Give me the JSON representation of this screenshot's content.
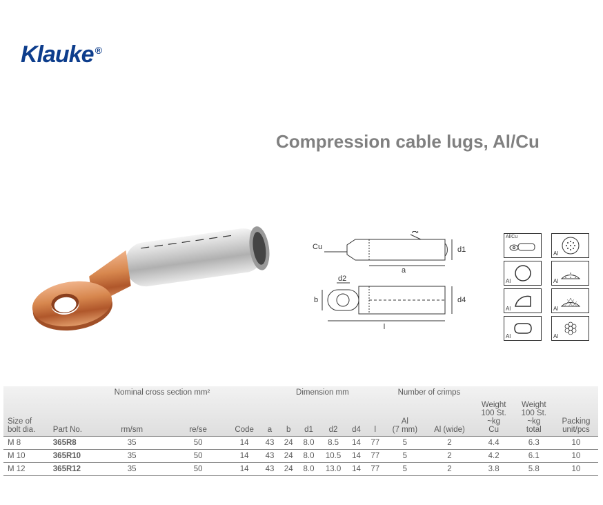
{
  "logo": {
    "text": "Klauke",
    "reg": "®",
    "color": "#0d3d8c"
  },
  "title": "Compression cable lugs, Al/Cu",
  "photo": {
    "barrel_color": "#c8c8c8",
    "copper_color": "#d7874e",
    "copper_dark": "#b0572b"
  },
  "diagram": {
    "labels": {
      "cu": "Cu",
      "al": "Al",
      "a": "a",
      "d1": "d1",
      "b": "b",
      "d2": "d2",
      "d4": "d4",
      "l": "l"
    }
  },
  "icons": [
    {
      "label_tl": "Al/Cu",
      "label_bl": "",
      "shape": "lug"
    },
    {
      "label_tl": "",
      "label_bl": "Al",
      "shape": "dots"
    },
    {
      "label_tl": "",
      "label_bl": "Al",
      "shape": "circle"
    },
    {
      "label_tl": "",
      "label_bl": "Al",
      "shape": "sector"
    },
    {
      "label_tl": "",
      "label_bl": "Al",
      "shape": "halfsector"
    },
    {
      "label_tl": "",
      "label_bl": "Al",
      "shape": "mesh"
    },
    {
      "label_tl": "",
      "label_bl": "Al",
      "shape": "hex"
    },
    {
      "label_tl": "",
      "label_bl": "Al",
      "shape": "bundle"
    }
  ],
  "table": {
    "group_headers": [
      {
        "text": "",
        "span": 2
      },
      {
        "text": "Nominal cross section mm²",
        "span": 2
      },
      {
        "text": "",
        "span": 1
      },
      {
        "text": "Dimension mm",
        "span": 6
      },
      {
        "text": "Number of crimps",
        "span": 2
      },
      {
        "text": "",
        "span": 3
      }
    ],
    "columns": [
      "Size of\nbolt dia.",
      "Part No.",
      "rm/sm",
      "re/se",
      "Code",
      "a",
      "b",
      "d1",
      "d2",
      "d4",
      "l",
      "Al\n(7 mm)",
      "Al (wide)",
      "Weight\n100 St.\n~kg\nCu",
      "Weight\n100 St.\n~kg\ntotal",
      "Packing\nunit/pcs"
    ],
    "rows": [
      [
        "M 8",
        "365R8",
        "35",
        "50",
        "14",
        "43",
        "24",
        "8.0",
        "8.5",
        "14",
        "77",
        "5",
        "2",
        "4.4",
        "6.3",
        "10"
      ],
      [
        "M 10",
        "365R10",
        "35",
        "50",
        "14",
        "43",
        "24",
        "8.0",
        "10.5",
        "14",
        "77",
        "5",
        "2",
        "4.2",
        "6.1",
        "10"
      ],
      [
        "M 12",
        "365R12",
        "35",
        "50",
        "14",
        "43",
        "24",
        "8.0",
        "13.0",
        "14",
        "77",
        "5",
        "2",
        "3.8",
        "5.8",
        "10"
      ]
    ]
  }
}
